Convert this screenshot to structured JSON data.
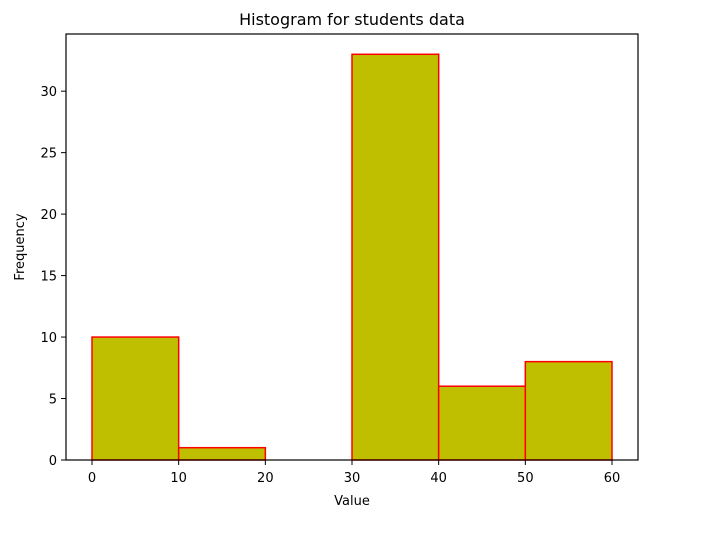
{
  "chart_data": {
    "type": "bar",
    "title": "Histogram for students data",
    "xlabel": "Value",
    "ylabel": "Frequency",
    "bins": [
      {
        "x0": 0,
        "x1": 10,
        "count": 10
      },
      {
        "x0": 10,
        "x1": 20,
        "count": 1
      },
      {
        "x0": 20,
        "x1": 30,
        "count": 0
      },
      {
        "x0": 30,
        "x1": 40,
        "count": 33
      },
      {
        "x0": 40,
        "x1": 50,
        "count": 6
      },
      {
        "x0": 50,
        "x1": 60,
        "count": 8
      }
    ],
    "xlim": [
      -3,
      63
    ],
    "ylim": [
      0,
      34.65
    ],
    "xticks": [
      0,
      10,
      20,
      30,
      40,
      50,
      60
    ],
    "yticks": [
      0,
      5,
      10,
      15,
      20,
      25,
      30
    ],
    "colors": {
      "bar_fill": "#bfbf00",
      "bar_edge": "#ff0000"
    },
    "grid": false,
    "legend": "none"
  }
}
